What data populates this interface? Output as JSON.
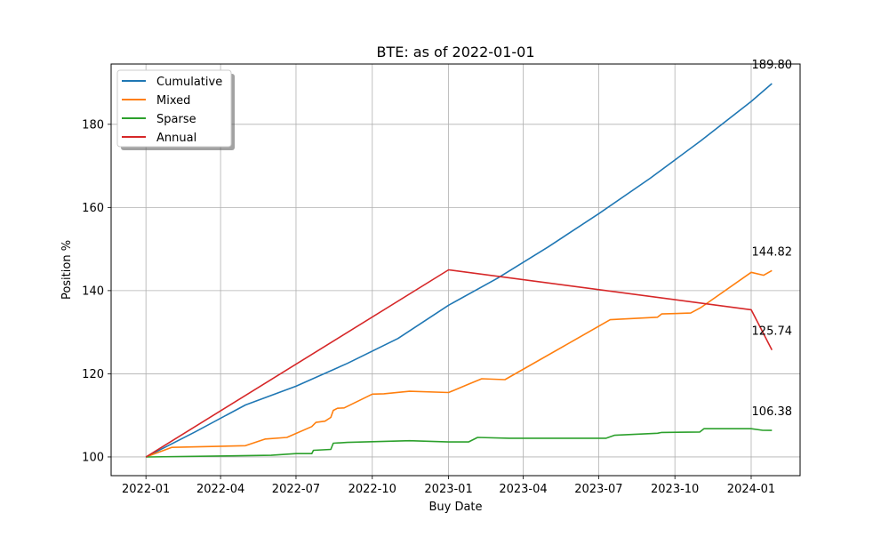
{
  "chart_data": {
    "type": "line",
    "title": "BTE: as of 2022-01-01",
    "xlabel": "Buy Date",
    "ylabel": "Position %",
    "x_tick_labels": [
      "2022-01",
      "2022-04",
      "2022-07",
      "2022-10",
      "2023-01",
      "2023-04",
      "2023-07",
      "2023-10",
      "2024-01"
    ],
    "x_ticks": [
      "2022-01-01",
      "2022-04-01",
      "2022-07-01",
      "2022-10-01",
      "2023-01-01",
      "2023-04-01",
      "2023-07-01",
      "2023-10-01",
      "2024-01-01"
    ],
    "y_ticks": [
      100,
      120,
      140,
      160,
      180
    ],
    "xlim": [
      "2021-11-20",
      "2024-02-29"
    ],
    "ylim": [
      95.5,
      194.5
    ],
    "grid": true,
    "legend_position": "upper-left",
    "series": [
      {
        "name": "Cumulative",
        "color": "#1f77b4",
        "end_label": "189.80",
        "points": [
          [
            "2022-01-01",
            100.0
          ],
          [
            "2022-03-01",
            106.0
          ],
          [
            "2022-05-01",
            112.5
          ],
          [
            "2022-07-01",
            117.0
          ],
          [
            "2022-09-01",
            122.5
          ],
          [
            "2022-11-01",
            128.5
          ],
          [
            "2023-01-01",
            136.5
          ],
          [
            "2023-03-01",
            143.0
          ],
          [
            "2023-05-01",
            150.5
          ],
          [
            "2023-07-01",
            158.5
          ],
          [
            "2023-09-01",
            167.0
          ],
          [
            "2023-11-01",
            176.0
          ],
          [
            "2024-01-01",
            185.5
          ],
          [
            "2024-01-26",
            189.8
          ]
        ]
      },
      {
        "name": "Mixed",
        "color": "#ff7f0e",
        "end_label": "144.82",
        "points": [
          [
            "2022-01-01",
            100.0
          ],
          [
            "2022-02-01",
            102.3
          ],
          [
            "2022-05-01",
            102.7
          ],
          [
            "2022-05-25",
            104.3
          ],
          [
            "2022-06-20",
            104.7
          ],
          [
            "2022-07-20",
            107.3
          ],
          [
            "2022-07-25",
            108.3
          ],
          [
            "2022-08-05",
            108.6
          ],
          [
            "2022-08-12",
            109.5
          ],
          [
            "2022-08-15",
            111.2
          ],
          [
            "2022-08-20",
            111.7
          ],
          [
            "2022-08-28",
            111.8
          ],
          [
            "2022-10-01",
            115.1
          ],
          [
            "2022-10-15",
            115.2
          ],
          [
            "2022-11-15",
            115.8
          ],
          [
            "2023-01-01",
            115.5
          ],
          [
            "2023-01-25",
            117.5
          ],
          [
            "2023-02-10",
            118.8
          ],
          [
            "2023-03-10",
            118.6
          ],
          [
            "2023-07-15",
            133.0
          ],
          [
            "2023-09-10",
            133.6
          ],
          [
            "2023-09-15",
            134.4
          ],
          [
            "2023-10-20",
            134.6
          ],
          [
            "2023-11-01",
            135.9
          ],
          [
            "2024-01-01",
            144.4
          ],
          [
            "2024-01-16",
            143.7
          ],
          [
            "2024-01-26",
            144.82
          ]
        ]
      },
      {
        "name": "Sparse",
        "color": "#2ca02c",
        "end_label": "106.38",
        "points": [
          [
            "2022-01-01",
            100.0
          ],
          [
            "2022-06-01",
            100.4
          ],
          [
            "2022-07-01",
            100.8
          ],
          [
            "2022-07-20",
            100.8
          ],
          [
            "2022-07-22",
            101.6
          ],
          [
            "2022-08-12",
            101.8
          ],
          [
            "2022-08-15",
            103.3
          ],
          [
            "2022-09-01",
            103.5
          ],
          [
            "2022-11-15",
            103.9
          ],
          [
            "2023-01-01",
            103.6
          ],
          [
            "2023-01-25",
            103.6
          ],
          [
            "2023-02-05",
            104.7
          ],
          [
            "2023-03-15",
            104.5
          ],
          [
            "2023-07-10",
            104.5
          ],
          [
            "2023-07-20",
            105.2
          ],
          [
            "2023-09-10",
            105.7
          ],
          [
            "2023-09-15",
            105.9
          ],
          [
            "2023-10-31",
            106.0
          ],
          [
            "2023-11-05",
            106.8
          ],
          [
            "2024-01-01",
            106.8
          ],
          [
            "2024-01-15",
            106.4
          ],
          [
            "2024-01-26",
            106.38
          ]
        ]
      },
      {
        "name": "Annual",
        "color": "#d62728",
        "end_label": "125.74",
        "points": [
          [
            "2022-01-01",
            100.0
          ],
          [
            "2023-01-01",
            145.0
          ],
          [
            "2024-01-01",
            135.4
          ],
          [
            "2024-01-26",
            125.74
          ]
        ]
      }
    ]
  }
}
